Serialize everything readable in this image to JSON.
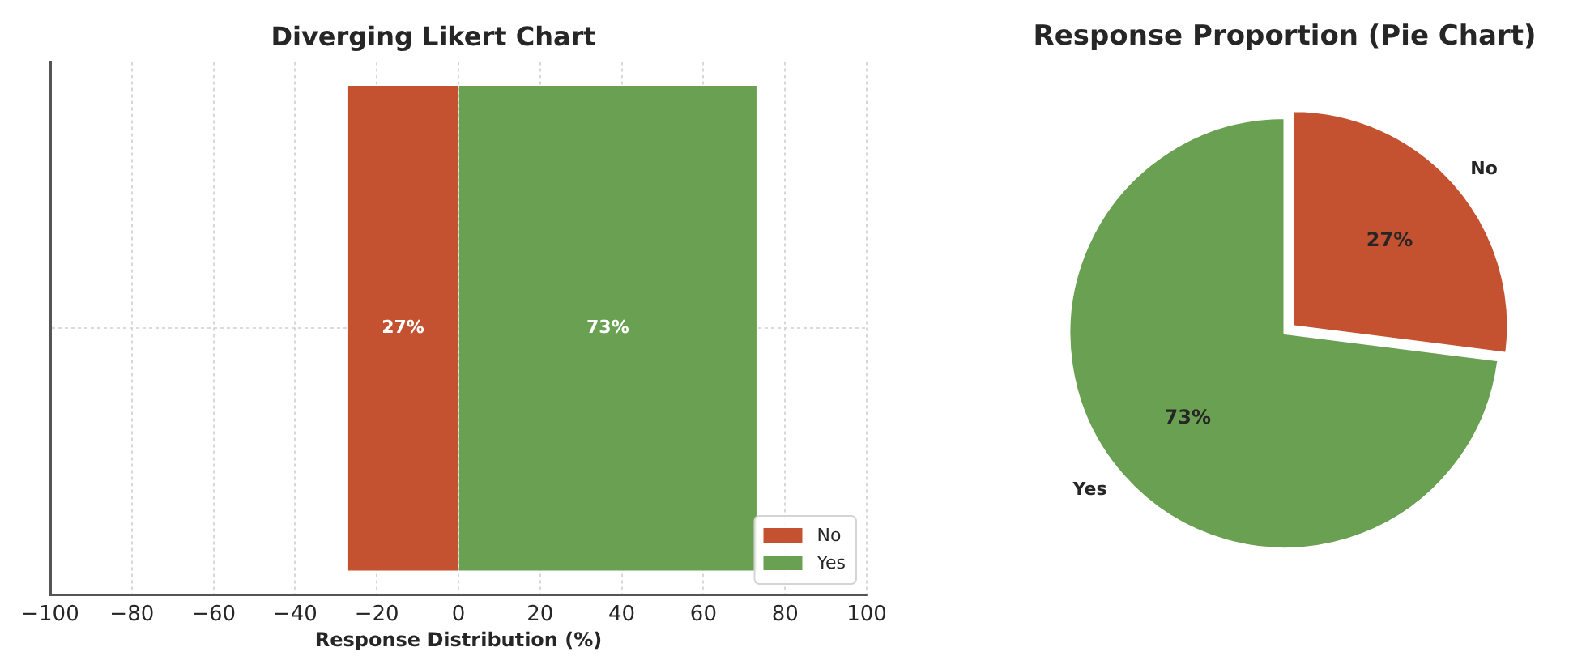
{
  "chart_data": [
    {
      "type": "bar",
      "orientation": "horizontal",
      "title": "Diverging Likert Chart",
      "xlabel": "Response Distribution (%)",
      "categories": [
        null
      ],
      "series": [
        {
          "name": "No",
          "color": "#c4512f",
          "values": [
            27
          ],
          "base": [
            -27
          ],
          "value_labels": [
            "27%"
          ]
        },
        {
          "name": "Yes",
          "color": "#6aa051",
          "values": [
            73
          ],
          "base": [
            0
          ],
          "value_labels": [
            "73%"
          ]
        }
      ],
      "xlim": [
        -100,
        100
      ],
      "xticks": [
        {
          "value": -100,
          "label": "−100"
        },
        {
          "value": -80,
          "label": "−80"
        },
        {
          "value": -60,
          "label": "−60"
        },
        {
          "value": -40,
          "label": "−40"
        },
        {
          "value": -20,
          "label": "−20"
        },
        0,
        20,
        40,
        60,
        80,
        100
      ],
      "grid": true,
      "legend": "bottom right",
      "tick_labels": "x"
    },
    {
      "type": "pie",
      "title": "Response Proportion (Pie Chart)",
      "categories": [
        "No",
        "Yes"
      ],
      "values": [
        27,
        73
      ],
      "colors": [
        "#c4512f",
        "#6aa051"
      ],
      "value_labels": [
        "27%",
        "73%"
      ],
      "legend": false
    }
  ]
}
